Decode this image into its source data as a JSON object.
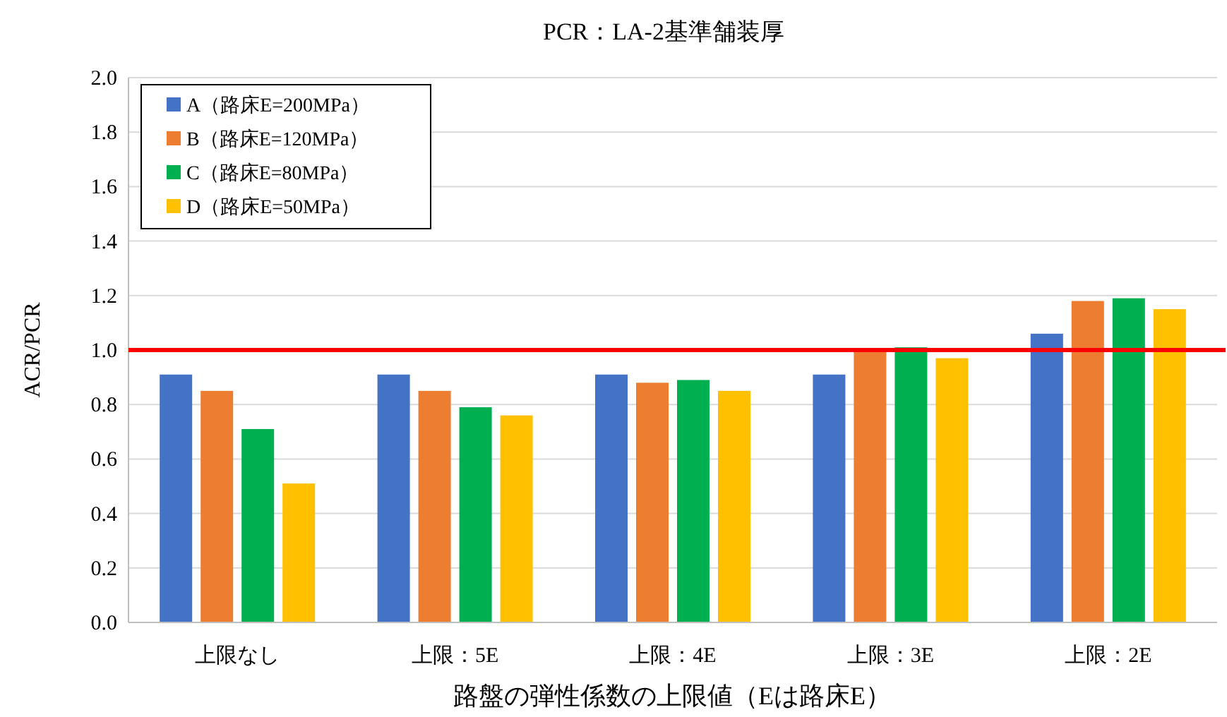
{
  "chart_data": {
    "type": "bar",
    "title": "PCR：LA-2基準舗装厚",
    "xlabel": "路盤の弾性係数の上限値（Eは路床E）",
    "ylabel": "ACR/PCR",
    "categories": [
      "上限なし",
      "上限：5E",
      "上限：4E",
      "上限：3E",
      "上限：2E"
    ],
    "series": [
      {
        "name": "A（路床E=200MPa）",
        "color": "#4472c4",
        "values": [
          0.91,
          0.91,
          0.91,
          0.91,
          1.06
        ]
      },
      {
        "name": "B（路床E=120MPa）",
        "color": "#ed7d31",
        "values": [
          0.85,
          0.85,
          0.88,
          1.0,
          1.18
        ]
      },
      {
        "name": "C（路床E=80MPa）",
        "color": "#00b050",
        "values": [
          0.71,
          0.79,
          0.89,
          1.01,
          1.19
        ]
      },
      {
        "name": "D（路床E=50MPa）",
        "color": "#ffc000",
        "values": [
          0.51,
          0.76,
          0.85,
          0.97,
          1.15
        ]
      }
    ],
    "ylim": [
      0,
      2.0
    ],
    "yticks": [
      {
        "value": 0,
        "label": "0.0"
      },
      {
        "value": 0.2,
        "label": "0.2"
      },
      {
        "value": 0.4,
        "label": "0.4"
      },
      {
        "value": 0.6,
        "label": "0.6"
      },
      {
        "value": 0.8,
        "label": "0.8"
      },
      {
        "value": 1,
        "label": "1.0"
      },
      {
        "value": 1.2,
        "label": "1.2"
      },
      {
        "value": 1.4,
        "label": "1.4"
      },
      {
        "value": 1.6,
        "label": "1.6"
      },
      {
        "value": 1.8,
        "label": "1.8"
      },
      {
        "value": 2,
        "label": "2.0"
      }
    ],
    "grid": "y",
    "legend": "top left",
    "ref_lines": [
      {
        "axis": "y",
        "value": 1.0,
        "color": "#ff0000"
      }
    ]
  }
}
